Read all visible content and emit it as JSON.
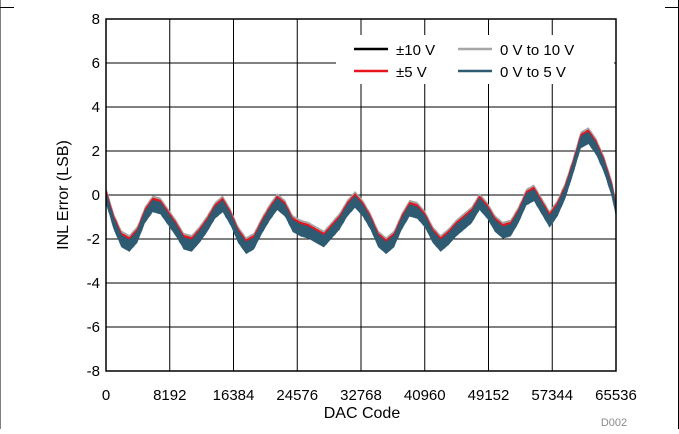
{
  "chart_data": {
    "type": "line",
    "xlabel": "DAC Code",
    "ylabel": "INL Error (LSB)",
    "xlim": [
      0,
      65536
    ],
    "ylim": [
      -8,
      8
    ],
    "x_ticks": [
      "0",
      "8192",
      "16384",
      "24576",
      "32768",
      "40960",
      "49152",
      "57344",
      "65536"
    ],
    "y_ticks": [
      "8",
      "6",
      "4",
      "2",
      "0",
      "-2",
      "-4",
      "-6",
      "-8"
    ],
    "grid": true,
    "legend_position": "top-right",
    "figure_id": "D002",
    "colors": {
      "pm10": "#000000",
      "pm5": "#e8141e",
      "u10": "#a6a6a6",
      "u5": "#2e5b72"
    },
    "band_halfwidth_lsb": 0.28,
    "series": [
      {
        "key": "pm10",
        "name": "±10 V",
        "x": [
          0,
          1000,
          2000,
          3000,
          4000,
          5000,
          6000,
          7000,
          8000,
          9000,
          10000,
          11000,
          12000,
          13000,
          14000,
          15000,
          16000,
          17000,
          18000,
          19000,
          20000,
          21000,
          22000,
          23000,
          24000,
          25000,
          26000,
          27000,
          28000,
          29000,
          30000,
          31000,
          32000,
          33000,
          34000,
          35000,
          36000,
          37000,
          38000,
          39000,
          40000,
          41000,
          42000,
          43000,
          44000,
          45000,
          46000,
          47000,
          48000,
          49000,
          50000,
          51000,
          52000,
          53000,
          54000,
          55000,
          56000,
          57000,
          58000,
          59000,
          60000,
          61000,
          62000,
          63000,
          64000,
          65000,
          65535
        ],
        "y": [
          0.0,
          -1.2,
          -2.0,
          -2.2,
          -1.8,
          -0.9,
          -0.4,
          -0.5,
          -1.0,
          -1.5,
          -2.1,
          -2.2,
          -1.8,
          -1.3,
          -0.7,
          -0.4,
          -1.0,
          -1.8,
          -2.3,
          -2.1,
          -1.4,
          -0.8,
          -0.3,
          -0.6,
          -1.3,
          -1.5,
          -1.6,
          -1.8,
          -2.0,
          -1.6,
          -1.2,
          -0.6,
          -0.2,
          -0.6,
          -1.2,
          -2.0,
          -2.3,
          -2.0,
          -1.2,
          -0.6,
          -0.7,
          -1.1,
          -1.8,
          -2.2,
          -1.9,
          -1.5,
          -1.2,
          -0.9,
          -0.3,
          -0.7,
          -1.3,
          -1.6,
          -1.5,
          -0.9,
          -0.1,
          0.1,
          -0.5,
          -1.1,
          -0.6,
          0.2,
          1.3,
          2.5,
          2.7,
          2.2,
          1.4,
          0.3,
          -0.6
        ]
      },
      {
        "key": "u10",
        "name": "0 V to 10 V",
        "x": [
          0,
          1000,
          2000,
          3000,
          4000,
          5000,
          6000,
          7000,
          8000,
          9000,
          10000,
          11000,
          12000,
          13000,
          14000,
          15000,
          16000,
          17000,
          18000,
          19000,
          20000,
          21000,
          22000,
          23000,
          24000,
          25000,
          26000,
          27000,
          28000,
          29000,
          30000,
          31000,
          32000,
          33000,
          34000,
          35000,
          36000,
          37000,
          38000,
          39000,
          40000,
          41000,
          42000,
          43000,
          44000,
          45000,
          46000,
          47000,
          48000,
          49000,
          50000,
          51000,
          52000,
          53000,
          54000,
          55000,
          56000,
          57000,
          58000,
          59000,
          60000,
          61000,
          62000,
          63000,
          64000,
          65000,
          65535
        ],
        "y": [
          0.1,
          -1.1,
          -1.9,
          -2.1,
          -1.7,
          -0.8,
          -0.3,
          -0.4,
          -0.9,
          -1.4,
          -2.0,
          -2.1,
          -1.7,
          -1.2,
          -0.6,
          -0.3,
          -0.9,
          -1.7,
          -2.2,
          -2.0,
          -1.3,
          -0.7,
          -0.2,
          -0.5,
          -1.2,
          -1.4,
          -1.5,
          -1.7,
          -1.9,
          -1.5,
          -1.1,
          -0.5,
          -0.1,
          -0.5,
          -1.1,
          -1.9,
          -2.2,
          -1.9,
          -1.1,
          -0.5,
          -0.6,
          -1.0,
          -1.7,
          -2.1,
          -1.8,
          -1.4,
          -1.1,
          -0.8,
          -0.2,
          -0.6,
          -1.2,
          -1.5,
          -1.4,
          -0.8,
          0.0,
          0.2,
          -0.4,
          -1.0,
          -0.5,
          0.3,
          1.4,
          2.6,
          2.8,
          2.3,
          1.5,
          0.4,
          -0.5
        ]
      },
      {
        "key": "pm5",
        "name": "±5 V",
        "x": [
          0,
          1000,
          2000,
          3000,
          4000,
          5000,
          6000,
          7000,
          8000,
          9000,
          10000,
          11000,
          12000,
          13000,
          14000,
          15000,
          16000,
          17000,
          18000,
          19000,
          20000,
          21000,
          22000,
          23000,
          24000,
          25000,
          26000,
          27000,
          28000,
          29000,
          30000,
          31000,
          32000,
          33000,
          34000,
          35000,
          36000,
          37000,
          38000,
          39000,
          40000,
          41000,
          42000,
          43000,
          44000,
          45000,
          46000,
          47000,
          48000,
          49000,
          50000,
          51000,
          52000,
          53000,
          54000,
          55000,
          56000,
          57000,
          58000,
          59000,
          60000,
          61000,
          62000,
          63000,
          64000,
          65000,
          65535
        ],
        "y": [
          0.0,
          -1.2,
          -2.0,
          -2.2,
          -1.8,
          -0.9,
          -0.4,
          -0.5,
          -1.0,
          -1.5,
          -2.1,
          -2.2,
          -1.8,
          -1.3,
          -0.7,
          -0.4,
          -1.0,
          -1.8,
          -2.3,
          -2.1,
          -1.4,
          -0.8,
          -0.3,
          -0.6,
          -1.3,
          -1.5,
          -1.6,
          -1.8,
          -2.0,
          -1.6,
          -1.2,
          -0.6,
          -0.2,
          -0.6,
          -1.2,
          -2.0,
          -2.3,
          -2.0,
          -1.2,
          -0.6,
          -0.7,
          -1.1,
          -1.8,
          -2.2,
          -1.9,
          -1.5,
          -1.2,
          -0.9,
          -0.3,
          -0.7,
          -1.3,
          -1.6,
          -1.5,
          -0.9,
          -0.1,
          0.1,
          -0.5,
          -1.1,
          -0.6,
          0.2,
          1.3,
          2.5,
          2.7,
          2.2,
          1.4,
          0.3,
          -0.6
        ]
      },
      {
        "key": "u5",
        "name": "0 V to 5 V",
        "x": [
          0,
          1000,
          2000,
          3000,
          4000,
          5000,
          6000,
          7000,
          8000,
          9000,
          10000,
          11000,
          12000,
          13000,
          14000,
          15000,
          16000,
          17000,
          18000,
          19000,
          20000,
          21000,
          22000,
          23000,
          24000,
          25000,
          26000,
          27000,
          28000,
          29000,
          30000,
          31000,
          32000,
          33000,
          34000,
          35000,
          36000,
          37000,
          38000,
          39000,
          40000,
          41000,
          42000,
          43000,
          44000,
          45000,
          46000,
          47000,
          48000,
          49000,
          50000,
          51000,
          52000,
          53000,
          54000,
          55000,
          56000,
          57000,
          58000,
          59000,
          60000,
          61000,
          62000,
          63000,
          64000,
          65000,
          65535
        ],
        "y": [
          -0.1,
          -1.3,
          -2.1,
          -2.3,
          -1.9,
          -1.0,
          -0.5,
          -0.6,
          -1.1,
          -1.6,
          -2.2,
          -2.3,
          -1.9,
          -1.4,
          -0.8,
          -0.5,
          -1.1,
          -1.9,
          -2.4,
          -2.2,
          -1.5,
          -0.9,
          -0.4,
          -0.7,
          -1.4,
          -1.6,
          -1.7,
          -1.9,
          -2.1,
          -1.7,
          -1.3,
          -0.7,
          -0.3,
          -0.7,
          -1.3,
          -2.1,
          -2.4,
          -2.1,
          -1.3,
          -0.7,
          -0.8,
          -1.2,
          -1.9,
          -2.3,
          -2.0,
          -1.6,
          -1.3,
          -1.0,
          -0.4,
          -0.8,
          -1.4,
          -1.7,
          -1.6,
          -1.0,
          -0.2,
          0.0,
          -0.6,
          -1.2,
          -0.7,
          0.1,
          1.2,
          2.4,
          2.6,
          2.1,
          1.3,
          0.2,
          -0.7
        ]
      }
    ]
  }
}
